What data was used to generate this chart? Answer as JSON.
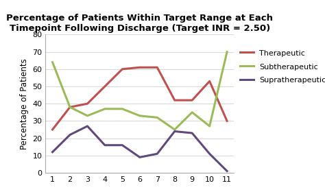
{
  "title": "Percentage of Patients Within Target Range at Each\nTimepoint Following Discharge (Target INR = 2.50)",
  "ylabel": "Percentage of Patients",
  "x": [
    1,
    2,
    3,
    4,
    5,
    6,
    7,
    8,
    9,
    10,
    11
  ],
  "therapeutic": [
    25,
    38,
    40,
    50,
    60,
    61,
    61,
    42,
    42,
    53,
    30
  ],
  "subtherapeutic": [
    64,
    38,
    33,
    37,
    37,
    33,
    32,
    25,
    35,
    27,
    70
  ],
  "supratherapeutic": [
    12,
    22,
    27,
    16,
    16,
    9,
    11,
    24,
    23,
    11,
    1
  ],
  "therapeutic_color": "#c0504d",
  "subtherapeutic_color": "#9bbb59",
  "supratherapeutic_color": "#604a7b",
  "ylim": [
    0,
    80
  ],
  "yticks": [
    0,
    10,
    20,
    30,
    40,
    50,
    60,
    70,
    80
  ],
  "xticks": [
    1,
    2,
    3,
    4,
    5,
    6,
    7,
    8,
    9,
    10,
    11
  ],
  "title_fontsize": 9.5,
  "axis_label_fontsize": 8.5,
  "tick_fontsize": 8,
  "legend_fontsize": 8,
  "linewidth": 2.2,
  "background_color": "#ffffff",
  "grid_color": "#d9d9d9"
}
